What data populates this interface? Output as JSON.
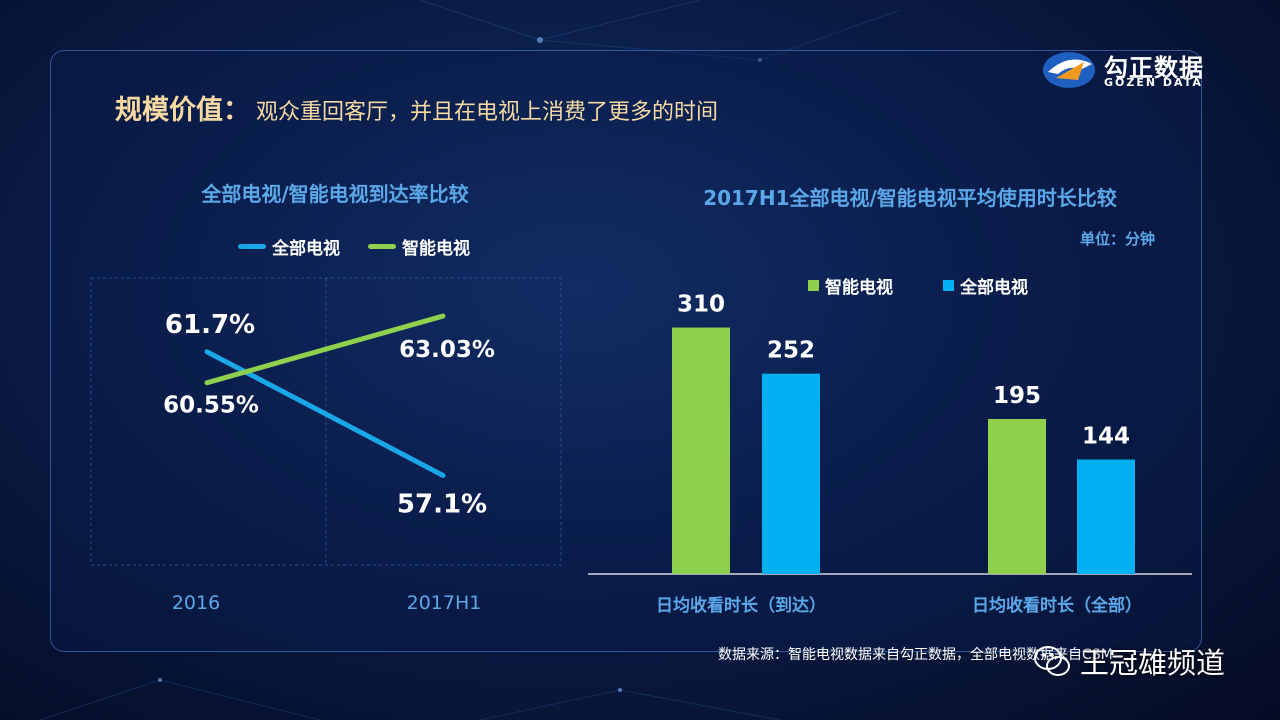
{
  "header": {
    "title_key": "规模价值：",
    "title_text": "观众重回客厅，并且在电视上消费了更多的时间"
  },
  "logo": {
    "cn": "勾正数据",
    "en": "GOZEN DATA"
  },
  "colors": {
    "green": "#8fd14f",
    "blue": "#00b0f0",
    "accent_title": "#5ba7e8",
    "gold": "#f5d9a0"
  },
  "left_chart": {
    "title": "全部电视/智能电视到达率比较"
  },
  "right_chart": {
    "title": "2017H1全部电视/智能电视平均使用时长比较",
    "unit": "单位：分钟"
  },
  "chart_data": [
    {
      "type": "line",
      "title": "全部电视/智能电视到达率比较",
      "categories": [
        "2016",
        "2017H1"
      ],
      "series": [
        {
          "name": "全部电视",
          "values": [
            61.7,
            57.1
          ],
          "labels": [
            "61.7%",
            "57.1%"
          ],
          "color": "#1aa7e8"
        },
        {
          "name": "智能电视",
          "values": [
            60.55,
            63.03
          ],
          "labels": [
            "60.55%",
            "63.03%"
          ],
          "color": "#8fd14f"
        }
      ],
      "grid": true,
      "legend": "top"
    },
    {
      "type": "bar",
      "title": "2017H1全部电视/智能电视平均使用时长比较",
      "unit": "单位：分钟",
      "categories": [
        "日均收看时长（到达）",
        "日均收看时长（全部）"
      ],
      "series": [
        {
          "name": "智能电视",
          "values": [
            310,
            195
          ],
          "color": "#8fd14f"
        },
        {
          "name": "全部电视",
          "values": [
            252,
            144
          ],
          "color": "#00b0f0"
        }
      ],
      "legend": "top"
    }
  ],
  "footer": {
    "source": "数据来源：智能电视数据来自勾正数据，全部电视数据来自CSM",
    "watermark": "王冠雄频道"
  }
}
